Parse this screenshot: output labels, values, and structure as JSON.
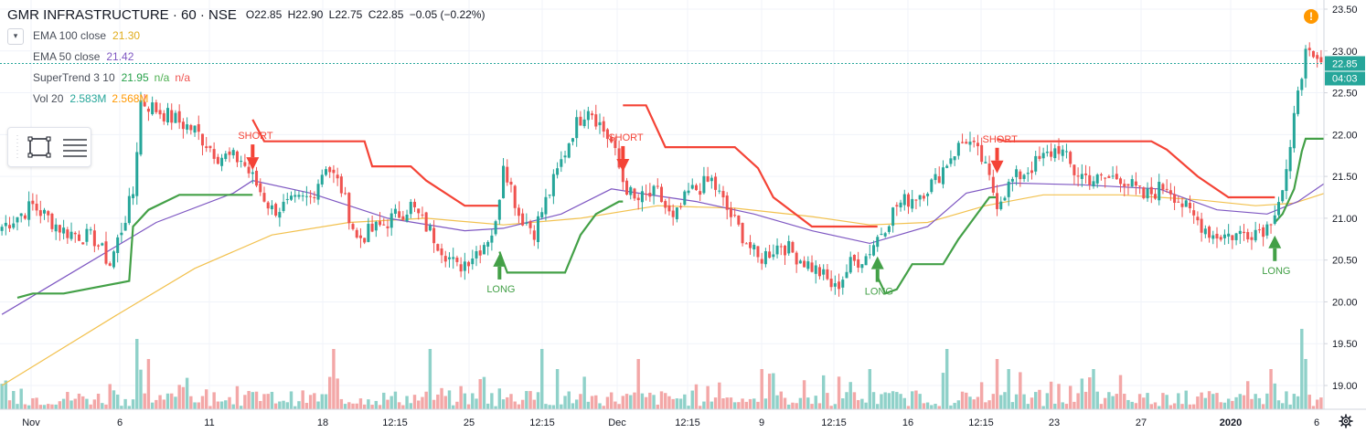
{
  "header": {
    "symbol": "GMR INFRASTRUCTURE",
    "interval": "60",
    "exchange": "NSE",
    "open": "O22.85",
    "high": "H22.90",
    "low": "L22.75",
    "close": "C22.85",
    "change": "−0.05 (−0.22%)"
  },
  "indicators": [
    {
      "name": "EMA 100 close",
      "value": "21.30",
      "color": "#e0ac1b"
    },
    {
      "name": "EMA 50 close",
      "value": "21.42",
      "color": "#7e57c2"
    },
    {
      "name": "SuperTrend 3 10",
      "value": "21.95",
      "value2": "n/a",
      "value3": "n/a",
      "color": "#27a14a",
      "color2": "#4caf50",
      "color3": "#ef5350"
    },
    {
      "name": "Vol 20",
      "value": "2.583M",
      "value2": "2.568M",
      "color": "#26a69a",
      "color2": "#ff9800"
    }
  ],
  "icons": {
    "collapse": "chevron-down-icon",
    "draw_rect": "rectangle-tool-icon",
    "draw_lines": "horizontal-lines-icon",
    "warning": "warning-icon",
    "settings": "gear-icon"
  },
  "price_tags": {
    "last": "22.85",
    "countdown": "04:03"
  },
  "colors": {
    "up": "#26a69a",
    "down": "#ef5350",
    "up_vol": "#8fd1c9",
    "down_vol": "#f3a7a7",
    "st_up": "#43a047",
    "st_down": "#f44336",
    "ema100": "#f2c14e",
    "ema50": "#7e57c2"
  },
  "chart_data": {
    "type": "candlestick",
    "title": "GMR INFRASTRUCTURE · 60 · NSE",
    "y_axis": {
      "ticks": [
        "23.50",
        "23.00",
        "22.50",
        "22.00",
        "21.50",
        "21.00",
        "20.50",
        "20.00",
        "19.50",
        "19.00"
      ],
      "ylim": [
        19.0,
        23.5
      ]
    },
    "x_axis": {
      "ticks": [
        "Nov",
        "6",
        "11",
        "18",
        "12:15",
        "25",
        "12:15",
        "Dec",
        "12:15",
        "9",
        "12:15",
        "16",
        "12:15",
        "23",
        "27",
        "2020",
        "6"
      ]
    },
    "annotations": [
      {
        "label": "SHORT",
        "kind": "sell",
        "bar": 65,
        "price": 21.62
      },
      {
        "label": "LONG",
        "kind": "buy",
        "bar": 129,
        "price": 20.53
      },
      {
        "label": "SHORT",
        "kind": "sell",
        "bar": 161,
        "price": 21.6
      },
      {
        "label": "LONG",
        "kind": "buy",
        "bar": 227,
        "price": 20.5
      },
      {
        "label": "SHORT",
        "kind": "sell",
        "bar": 258,
        "price": 21.58
      },
      {
        "label": "LONG",
        "kind": "buy",
        "bar": 330,
        "price": 20.75
      }
    ],
    "anchors": [
      [
        0,
        20.9
      ],
      [
        8,
        21.15
      ],
      [
        16,
        20.85
      ],
      [
        24,
        20.75
      ],
      [
        28,
        20.45
      ],
      [
        34,
        21.3
      ],
      [
        36,
        22.4
      ],
      [
        42,
        22.25
      ],
      [
        50,
        22.05
      ],
      [
        56,
        21.75
      ],
      [
        62,
        21.7
      ],
      [
        66,
        21.4
      ],
      [
        70,
        21.1
      ],
      [
        74,
        21.15
      ],
      [
        80,
        21.25
      ],
      [
        84,
        21.65
      ],
      [
        88,
        21.35
      ],
      [
        92,
        20.75
      ],
      [
        98,
        20.9
      ],
      [
        106,
        21.15
      ],
      [
        114,
        20.65
      ],
      [
        118,
        20.4
      ],
      [
        124,
        20.65
      ],
      [
        128,
        20.9
      ],
      [
        130,
        21.7
      ],
      [
        134,
        21.05
      ],
      [
        138,
        20.85
      ],
      [
        144,
        21.55
      ],
      [
        148,
        22.05
      ],
      [
        152,
        22.35
      ],
      [
        158,
        21.9
      ],
      [
        161,
        21.45
      ],
      [
        164,
        21.2
      ],
      [
        170,
        21.3
      ],
      [
        174,
        20.95
      ],
      [
        178,
        21.3
      ],
      [
        184,
        21.45
      ],
      [
        188,
        21.1
      ],
      [
        192,
        20.8
      ],
      [
        196,
        20.5
      ],
      [
        202,
        20.7
      ],
      [
        206,
        20.55
      ],
      [
        212,
        20.35
      ],
      [
        216,
        20.15
      ],
      [
        220,
        20.45
      ],
      [
        224,
        20.55
      ],
      [
        228,
        20.85
      ],
      [
        232,
        21.15
      ],
      [
        238,
        21.3
      ],
      [
        242,
        21.45
      ],
      [
        246,
        21.75
      ],
      [
        250,
        21.95
      ],
      [
        254,
        21.7
      ],
      [
        258,
        21.2
      ],
      [
        262,
        21.45
      ],
      [
        268,
        21.65
      ],
      [
        274,
        21.85
      ],
      [
        278,
        21.55
      ],
      [
        284,
        21.45
      ],
      [
        290,
        21.5
      ],
      [
        296,
        21.25
      ],
      [
        302,
        21.4
      ],
      [
        308,
        21.05
      ],
      [
        314,
        20.8
      ],
      [
        320,
        20.8
      ],
      [
        324,
        20.85
      ],
      [
        328,
        20.9
      ],
      [
        332,
        21.35
      ],
      [
        334,
        21.75
      ],
      [
        336,
        22.6
      ],
      [
        338,
        22.95
      ],
      [
        340,
        22.85
      ]
    ],
    "supertrend": [
      {
        "from": 0,
        "to": 65,
        "dir": "up",
        "start": 19.85,
        "steps": [
          [
            4,
            20.05
          ],
          [
            8,
            20.1
          ],
          [
            16,
            20.1
          ],
          [
            33,
            20.25
          ],
          [
            34,
            20.9
          ],
          [
            38,
            21.1
          ],
          [
            46,
            21.28
          ],
          [
            65,
            21.28
          ]
        ]
      },
      {
        "from": 65,
        "to": 129,
        "dir": "down",
        "steps": [
          [
            65,
            22.18
          ],
          [
            68,
            21.92
          ],
          [
            94,
            21.92
          ],
          [
            96,
            21.62
          ],
          [
            106,
            21.62
          ],
          [
            110,
            21.45
          ],
          [
            120,
            21.15
          ],
          [
            129,
            21.15
          ]
        ]
      },
      {
        "from": 129,
        "to": 161,
        "dir": "up",
        "steps": [
          [
            129,
            20.6
          ],
          [
            131,
            20.35
          ],
          [
            146,
            20.35
          ],
          [
            150,
            20.8
          ],
          [
            154,
            21.05
          ],
          [
            160,
            21.2
          ],
          [
            161,
            21.2
          ]
        ]
      },
      {
        "from": 161,
        "to": 227,
        "dir": "down",
        "steps": [
          [
            161,
            22.35
          ],
          [
            167,
            22.35
          ],
          [
            172,
            21.85
          ],
          [
            190,
            21.85
          ],
          [
            196,
            21.6
          ],
          [
            200,
            21.25
          ],
          [
            210,
            20.9
          ],
          [
            227,
            20.9
          ]
        ]
      },
      {
        "from": 227,
        "to": 258,
        "dir": "up",
        "steps": [
          [
            227,
            20.3
          ],
          [
            229,
            20.1
          ],
          [
            232,
            20.15
          ],
          [
            236,
            20.45
          ],
          [
            244,
            20.45
          ],
          [
            248,
            20.75
          ],
          [
            252,
            21.0
          ],
          [
            256,
            21.25
          ],
          [
            258,
            21.25
          ]
        ]
      },
      {
        "from": 258,
        "to": 330,
        "dir": "down",
        "steps": [
          [
            258,
            21.95
          ],
          [
            260,
            21.92
          ],
          [
            280,
            21.92
          ],
          [
            298,
            21.92
          ],
          [
            302,
            21.82
          ],
          [
            310,
            21.5
          ],
          [
            318,
            21.25
          ],
          [
            330,
            21.25
          ]
        ]
      },
      {
        "from": 330,
        "to": 343,
        "dir": "up",
        "steps": [
          [
            330,
            20.95
          ],
          [
            332,
            21.05
          ],
          [
            335,
            21.35
          ],
          [
            337,
            21.8
          ],
          [
            338,
            21.95
          ],
          [
            343,
            21.95
          ]
        ]
      }
    ],
    "ema50": [
      [
        0,
        19.85
      ],
      [
        20,
        20.4
      ],
      [
        40,
        20.95
      ],
      [
        60,
        21.3
      ],
      [
        65,
        21.45
      ],
      [
        80,
        21.3
      ],
      [
        100,
        21.0
      ],
      [
        120,
        20.85
      ],
      [
        130,
        20.88
      ],
      [
        145,
        21.05
      ],
      [
        158,
        21.35
      ],
      [
        165,
        21.3
      ],
      [
        180,
        21.2
      ],
      [
        195,
        21.05
      ],
      [
        210,
        20.85
      ],
      [
        225,
        20.7
      ],
      [
        240,
        20.9
      ],
      [
        250,
        21.3
      ],
      [
        262,
        21.42
      ],
      [
        280,
        21.4
      ],
      [
        300,
        21.35
      ],
      [
        315,
        21.1
      ],
      [
        328,
        21.05
      ],
      [
        336,
        21.2
      ],
      [
        343,
        21.42
      ]
    ],
    "ema100": [
      [
        0,
        19.0
      ],
      [
        30,
        19.85
      ],
      [
        50,
        20.4
      ],
      [
        70,
        20.8
      ],
      [
        90,
        20.95
      ],
      [
        110,
        21.0
      ],
      [
        130,
        20.92
      ],
      [
        150,
        21.0
      ],
      [
        170,
        21.15
      ],
      [
        190,
        21.12
      ],
      [
        210,
        21.02
      ],
      [
        225,
        20.92
      ],
      [
        240,
        20.95
      ],
      [
        255,
        21.15
      ],
      [
        270,
        21.28
      ],
      [
        290,
        21.28
      ],
      [
        310,
        21.22
      ],
      [
        325,
        21.15
      ],
      [
        335,
        21.18
      ],
      [
        343,
        21.3
      ]
    ],
    "volume_max": 10.0,
    "volume_spikes": [
      [
        35,
        7
      ],
      [
        38,
        5
      ],
      [
        86,
        6
      ],
      [
        111,
        6
      ],
      [
        124,
        3
      ],
      [
        140,
        6
      ],
      [
        144,
        4
      ],
      [
        165,
        5
      ],
      [
        197,
        4
      ],
      [
        225,
        4
      ],
      [
        245,
        6
      ],
      [
        258,
        5
      ],
      [
        261,
        4
      ],
      [
        283,
        4
      ],
      [
        329,
        4
      ],
      [
        337,
        8
      ],
      [
        338,
        5
      ]
    ]
  }
}
